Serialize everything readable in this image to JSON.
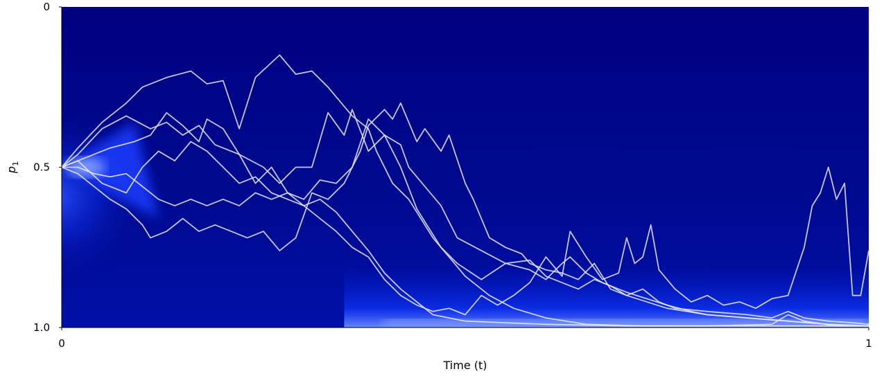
{
  "chart_data": {
    "type": "line",
    "xlabel": "Time (t)",
    "ylabel": "p",
    "ylabel_subscript": "1",
    "xlim": [
      0,
      1
    ],
    "ylim": [
      0,
      1.0
    ],
    "y_inverted": true,
    "x_ticks": [
      {
        "value": 0,
        "label": "0"
      },
      {
        "value": 1,
        "label": "1"
      }
    ],
    "y_ticks": [
      {
        "value": 0,
        "label": "0"
      },
      {
        "value": 0.5,
        "label": "0.5"
      },
      {
        "value": 1.0,
        "label": "1.0"
      }
    ],
    "grid": false,
    "background": {
      "kind": "density-heatmap",
      "base_color": "#00007a",
      "peak_color": "#1a3cff",
      "glow_color": "#8fa8ff"
    },
    "line_color": "#e6e6ff",
    "series": [
      {
        "points": [
          [
            0,
            0.5
          ],
          [
            0.02,
            0.44
          ],
          [
            0.05,
            0.36
          ],
          [
            0.08,
            0.3
          ],
          [
            0.1,
            0.25
          ],
          [
            0.13,
            0.22
          ],
          [
            0.16,
            0.2
          ],
          [
            0.18,
            0.24
          ],
          [
            0.2,
            0.23
          ],
          [
            0.22,
            0.38
          ],
          [
            0.24,
            0.22
          ],
          [
            0.27,
            0.15
          ],
          [
            0.29,
            0.21
          ],
          [
            0.31,
            0.2
          ],
          [
            0.33,
            0.25
          ],
          [
            0.36,
            0.34
          ],
          [
            0.38,
            0.38
          ],
          [
            0.39,
            0.45
          ],
          [
            0.41,
            0.55
          ],
          [
            0.43,
            0.6
          ],
          [
            0.46,
            0.72
          ],
          [
            0.5,
            0.84
          ],
          [
            0.53,
            0.9
          ],
          [
            0.56,
            0.94
          ],
          [
            0.6,
            0.97
          ],
          [
            0.65,
            0.99
          ],
          [
            0.72,
            0.995
          ],
          [
            0.8,
            0.995
          ],
          [
            0.88,
            0.99
          ],
          [
            0.9,
            0.96
          ],
          [
            0.92,
            0.98
          ],
          [
            0.96,
            0.995
          ],
          [
            1.0,
            0.995
          ]
        ]
      },
      {
        "points": [
          [
            0,
            0.5
          ],
          [
            0.02,
            0.46
          ],
          [
            0.05,
            0.38
          ],
          [
            0.08,
            0.34
          ],
          [
            0.11,
            0.38
          ],
          [
            0.13,
            0.36
          ],
          [
            0.15,
            0.4
          ],
          [
            0.17,
            0.37
          ],
          [
            0.19,
            0.43
          ],
          [
            0.22,
            0.46
          ],
          [
            0.25,
            0.5
          ],
          [
            0.27,
            0.55
          ],
          [
            0.29,
            0.5
          ],
          [
            0.31,
            0.5
          ],
          [
            0.33,
            0.33
          ],
          [
            0.35,
            0.4
          ],
          [
            0.36,
            0.32
          ],
          [
            0.38,
            0.45
          ],
          [
            0.4,
            0.4
          ],
          [
            0.42,
            0.5
          ],
          [
            0.44,
            0.63
          ],
          [
            0.47,
            0.75
          ],
          [
            0.49,
            0.8
          ],
          [
            0.52,
            0.85
          ],
          [
            0.55,
            0.8
          ],
          [
            0.58,
            0.82
          ],
          [
            0.6,
            0.85
          ],
          [
            0.62,
            0.8
          ],
          [
            0.63,
            0.78
          ],
          [
            0.65,
            0.83
          ],
          [
            0.67,
            0.86
          ],
          [
            0.7,
            0.89
          ],
          [
            0.75,
            0.93
          ],
          [
            0.78,
            0.95
          ],
          [
            0.8,
            0.96
          ],
          [
            0.85,
            0.97
          ],
          [
            0.9,
            0.98
          ],
          [
            0.95,
            0.99
          ],
          [
            1.0,
            0.995
          ]
        ]
      },
      {
        "points": [
          [
            0,
            0.5
          ],
          [
            0.03,
            0.47
          ],
          [
            0.06,
            0.44
          ],
          [
            0.09,
            0.42
          ],
          [
            0.11,
            0.4
          ],
          [
            0.13,
            0.33
          ],
          [
            0.15,
            0.37
          ],
          [
            0.17,
            0.42
          ],
          [
            0.18,
            0.35
          ],
          [
            0.2,
            0.38
          ],
          [
            0.22,
            0.46
          ],
          [
            0.24,
            0.55
          ],
          [
            0.26,
            0.5
          ],
          [
            0.28,
            0.58
          ],
          [
            0.3,
            0.6
          ],
          [
            0.32,
            0.54
          ],
          [
            0.34,
            0.55
          ],
          [
            0.36,
            0.5
          ],
          [
            0.38,
            0.35
          ],
          [
            0.4,
            0.4
          ],
          [
            0.42,
            0.43
          ],
          [
            0.43,
            0.5
          ],
          [
            0.45,
            0.56
          ],
          [
            0.47,
            0.62
          ],
          [
            0.49,
            0.72
          ],
          [
            0.52,
            0.76
          ],
          [
            0.55,
            0.8
          ],
          [
            0.58,
            0.79
          ],
          [
            0.6,
            0.84
          ],
          [
            0.62,
            0.86
          ],
          [
            0.64,
            0.88
          ],
          [
            0.66,
            0.85
          ],
          [
            0.68,
            0.87
          ],
          [
            0.7,
            0.9
          ],
          [
            0.72,
            0.88
          ],
          [
            0.74,
            0.92
          ],
          [
            0.76,
            0.94
          ],
          [
            0.8,
            0.95
          ],
          [
            0.85,
            0.96
          ],
          [
            0.88,
            0.97
          ],
          [
            0.9,
            0.95
          ],
          [
            0.92,
            0.97
          ],
          [
            0.95,
            0.98
          ],
          [
            0.98,
            0.985
          ],
          [
            1.0,
            0.99
          ]
        ]
      },
      {
        "points": [
          [
            0,
            0.5
          ],
          [
            0.02,
            0.5
          ],
          [
            0.04,
            0.52
          ],
          [
            0.06,
            0.53
          ],
          [
            0.08,
            0.52
          ],
          [
            0.1,
            0.56
          ],
          [
            0.12,
            0.6
          ],
          [
            0.14,
            0.62
          ],
          [
            0.16,
            0.6
          ],
          [
            0.18,
            0.62
          ],
          [
            0.2,
            0.6
          ],
          [
            0.22,
            0.62
          ],
          [
            0.24,
            0.58
          ],
          [
            0.26,
            0.6
          ],
          [
            0.28,
            0.58
          ],
          [
            0.3,
            0.62
          ],
          [
            0.32,
            0.6
          ],
          [
            0.34,
            0.64
          ],
          [
            0.36,
            0.7
          ],
          [
            0.38,
            0.76
          ],
          [
            0.4,
            0.83
          ],
          [
            0.42,
            0.88
          ],
          [
            0.44,
            0.92
          ],
          [
            0.46,
            0.96
          ],
          [
            0.48,
            0.97
          ],
          [
            0.5,
            0.98
          ],
          [
            0.55,
            0.985
          ],
          [
            0.6,
            0.99
          ],
          [
            0.7,
            0.995
          ],
          [
            0.8,
            0.995
          ],
          [
            0.9,
            0.995
          ],
          [
            1.0,
            0.995
          ]
        ]
      },
      {
        "points": [
          [
            0,
            0.5
          ],
          [
            0.02,
            0.52
          ],
          [
            0.04,
            0.56
          ],
          [
            0.06,
            0.6
          ],
          [
            0.08,
            0.63
          ],
          [
            0.1,
            0.68
          ],
          [
            0.11,
            0.72
          ],
          [
            0.13,
            0.7
          ],
          [
            0.15,
            0.66
          ],
          [
            0.17,
            0.7
          ],
          [
            0.19,
            0.68
          ],
          [
            0.21,
            0.7
          ],
          [
            0.23,
            0.72
          ],
          [
            0.25,
            0.7
          ],
          [
            0.27,
            0.76
          ],
          [
            0.29,
            0.72
          ],
          [
            0.3,
            0.65
          ],
          [
            0.31,
            0.58
          ],
          [
            0.33,
            0.6
          ],
          [
            0.35,
            0.55
          ],
          [
            0.37,
            0.45
          ],
          [
            0.38,
            0.37
          ],
          [
            0.4,
            0.32
          ],
          [
            0.41,
            0.35
          ],
          [
            0.42,
            0.3
          ],
          [
            0.44,
            0.42
          ],
          [
            0.45,
            0.38
          ],
          [
            0.47,
            0.45
          ],
          [
            0.48,
            0.4
          ],
          [
            0.5,
            0.55
          ],
          [
            0.51,
            0.6
          ],
          [
            0.53,
            0.72
          ],
          [
            0.55,
            0.75
          ],
          [
            0.57,
            0.77
          ],
          [
            0.58,
            0.8
          ],
          [
            0.6,
            0.82
          ],
          [
            0.62,
            0.83
          ],
          [
            0.64,
            0.85
          ],
          [
            0.66,
            0.8
          ],
          [
            0.68,
            0.88
          ],
          [
            0.7,
            0.9
          ],
          [
            0.75,
            0.94
          ],
          [
            0.8,
            0.96
          ],
          [
            0.85,
            0.97
          ],
          [
            0.9,
            0.98
          ],
          [
            0.95,
            0.99
          ],
          [
            1.0,
            0.995
          ]
        ]
      },
      {
        "points": [
          [
            0,
            0.5
          ],
          [
            0.02,
            0.48
          ],
          [
            0.05,
            0.55
          ],
          [
            0.08,
            0.58
          ],
          [
            0.1,
            0.5
          ],
          [
            0.12,
            0.45
          ],
          [
            0.14,
            0.48
          ],
          [
            0.16,
            0.42
          ],
          [
            0.18,
            0.45
          ],
          [
            0.2,
            0.5
          ],
          [
            0.22,
            0.55
          ],
          [
            0.24,
            0.53
          ],
          [
            0.26,
            0.58
          ],
          [
            0.28,
            0.6
          ],
          [
            0.3,
            0.62
          ],
          [
            0.32,
            0.66
          ],
          [
            0.34,
            0.7
          ],
          [
            0.36,
            0.75
          ],
          [
            0.38,
            0.78
          ],
          [
            0.4,
            0.85
          ],
          [
            0.42,
            0.9
          ],
          [
            0.44,
            0.93
          ],
          [
            0.46,
            0.95
          ],
          [
            0.48,
            0.94
          ],
          [
            0.5,
            0.96
          ],
          [
            0.52,
            0.9
          ],
          [
            0.54,
            0.93
          ],
          [
            0.56,
            0.9
          ],
          [
            0.58,
            0.86
          ],
          [
            0.6,
            0.78
          ],
          [
            0.62,
            0.84
          ],
          [
            0.63,
            0.7
          ],
          [
            0.65,
            0.78
          ],
          [
            0.67,
            0.85
          ],
          [
            0.69,
            0.83
          ],
          [
            0.7,
            0.72
          ],
          [
            0.71,
            0.8
          ],
          [
            0.72,
            0.78
          ],
          [
            0.73,
            0.68
          ],
          [
            0.74,
            0.82
          ],
          [
            0.76,
            0.88
          ],
          [
            0.78,
            0.92
          ],
          [
            0.8,
            0.9
          ],
          [
            0.82,
            0.93
          ],
          [
            0.84,
            0.92
          ],
          [
            0.86,
            0.94
          ],
          [
            0.88,
            0.91
          ],
          [
            0.9,
            0.9
          ],
          [
            0.92,
            0.75
          ],
          [
            0.93,
            0.62
          ],
          [
            0.94,
            0.58
          ],
          [
            0.95,
            0.5
          ],
          [
            0.96,
            0.6
          ],
          [
            0.97,
            0.55
          ],
          [
            0.98,
            0.9
          ],
          [
            0.99,
            0.9
          ],
          [
            1.0,
            0.76
          ]
        ]
      }
    ]
  }
}
